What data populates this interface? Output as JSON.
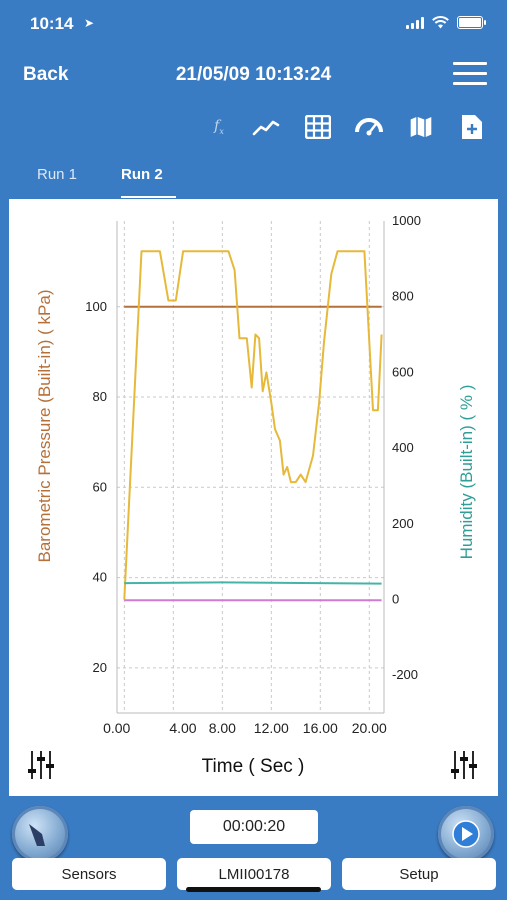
{
  "status": {
    "time": "10:14",
    "location_icon": "location-arrow-icon"
  },
  "nav": {
    "back_label": "Back",
    "title": "21/05/09 10:13:24"
  },
  "toolbar": {
    "icons": [
      "function-icon",
      "line-chart-icon",
      "table-icon",
      "gauge-icon",
      "map-icon",
      "add-file-icon"
    ]
  },
  "tabs": [
    {
      "label": "Run 1"
    },
    {
      "label": "Run 2",
      "active": true
    }
  ],
  "controls": {
    "timer": "00:00:20",
    "sensors_label": "Sensors",
    "logger_label": "LMII00178",
    "setup_label": "Setup"
  },
  "colors": {
    "header": "#3a7cc4",
    "pressure": "#b5703a",
    "humidity_axis": "#2e9e96",
    "yellow": "#e6b93a",
    "teal": "#45b3a6",
    "pink": "#d17ad4"
  },
  "chart_data": {
    "type": "line",
    "xlabel": "Time ( Sec )",
    "ylabel": "Barometric Pressure (Built-in) ( kPa)",
    "y2label": "Humidity (Built-in) ( % )",
    "xlim": [
      -0.6,
      21.2
    ],
    "ylim": [
      10,
      119
    ],
    "y2lim": [
      -300,
      1000
    ],
    "x_ticks": [
      "0.00",
      "4.00",
      "8.00",
      "12.00",
      "16.00",
      "20.00"
    ],
    "x_tick_values": [
      0,
      4,
      8,
      12,
      16,
      20
    ],
    "y_ticks": [
      20,
      40,
      60,
      80,
      100
    ],
    "y2_ticks": [
      -200,
      0,
      200,
      400,
      600,
      800,
      1000
    ],
    "grid": true,
    "series": [
      {
        "axis": "y",
        "color": "#b5703a",
        "x": [
          0,
          21
        ],
        "y": [
          100,
          100
        ]
      },
      {
        "axis": "y2",
        "color": "#e6b93a",
        "x": [
          0,
          1.4,
          2.9,
          3.6,
          4.2,
          4.8,
          8.5,
          9.0,
          9.4,
          10.0,
          10.4,
          10.7,
          11.0,
          11.3,
          11.6,
          12.0,
          12.3,
          12.7,
          13.0,
          13.3,
          13.6,
          14.0,
          14.4,
          14.8,
          15.4,
          15.9,
          16.3,
          16.9,
          17.4,
          18.1,
          18.7,
          19.6,
          20.3,
          20.7,
          21.0
        ],
        "y": [
          0,
          920,
          920,
          790,
          790,
          920,
          920,
          870,
          690,
          690,
          560,
          700,
          690,
          550,
          600,
          520,
          450,
          420,
          330,
          350,
          310,
          310,
          330,
          310,
          380,
          520,
          680,
          860,
          920,
          920,
          920,
          920,
          500,
          500,
          700
        ]
      },
      {
        "axis": "y2",
        "color": "#45b3a6",
        "x": [
          0,
          8,
          21
        ],
        "y": [
          43,
          45,
          42
        ]
      },
      {
        "axis": "y2",
        "color": "#d17ad4",
        "x": [
          0,
          21
        ],
        "y": [
          -2,
          -2
        ]
      }
    ]
  }
}
